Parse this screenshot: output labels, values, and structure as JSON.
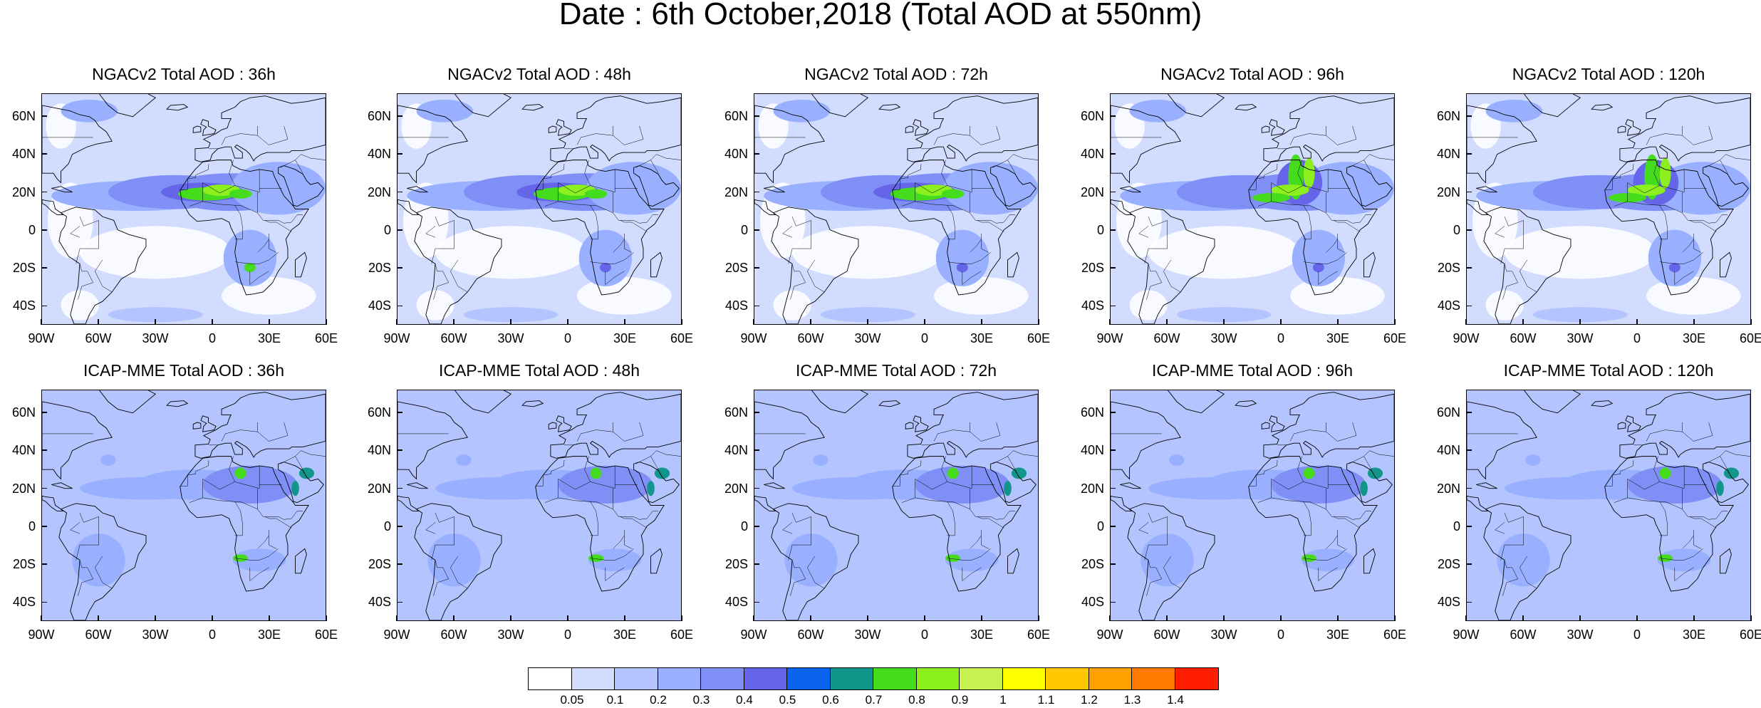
{
  "title": "Date : 6th October,2018 (Total AOD at 550nm)",
  "rows": [
    {
      "panels": [
        {
          "title": "NGACv2 Total AOD : 36h",
          "hotspot": 0.85
        },
        {
          "title": "NGACv2 Total AOD : 48h",
          "hotspot": 0.85
        },
        {
          "title": "NGACv2 Total AOD : 72h",
          "hotspot": 0.85
        },
        {
          "title": "NGACv2 Total AOD : 96h",
          "hotspot": 0.9
        },
        {
          "title": "NGACv2 Total AOD : 120h",
          "hotspot": 0.9
        }
      ]
    },
    {
      "panels": [
        {
          "title": "ICAP-MME Total AOD : 36h",
          "hotspot": 0.75
        },
        {
          "title": "ICAP-MME Total AOD : 48h",
          "hotspot": 0.75
        },
        {
          "title": "ICAP-MME Total AOD : 72h",
          "hotspot": 0.75
        },
        {
          "title": "ICAP-MME Total AOD : 96h",
          "hotspot": 0.75
        },
        {
          "title": "ICAP-MME Total AOD : 120h",
          "hotspot": 0.75
        }
      ]
    }
  ],
  "lat_ticks": [
    "60N",
    "40N",
    "20N",
    "0",
    "20S",
    "40S"
  ],
  "lon_ticks": [
    "90W",
    "60W",
    "30W",
    "0",
    "30E",
    "60E"
  ],
  "map_extent": {
    "lon": [
      -90,
      60
    ],
    "lat": [
      -50,
      72
    ]
  },
  "colorbar": {
    "labels": [
      "0.05",
      "0.1",
      "0.2",
      "0.3",
      "0.4",
      "0.5",
      "0.6",
      "0.7",
      "0.8",
      "0.9",
      "1",
      "1.1",
      "1.2",
      "1.3",
      "1.4"
    ],
    "colors": [
      "#ffffff",
      "#d2dcff",
      "#b4c4ff",
      "#98b0ff",
      "#7f8ff5",
      "#6565ea",
      "#0a64f0",
      "#12968c",
      "#46dc1e",
      "#8cf01e",
      "#c8f050",
      "#ffff00",
      "#ffc800",
      "#ffa000",
      "#ff7800",
      "#ff1e00"
    ]
  }
}
